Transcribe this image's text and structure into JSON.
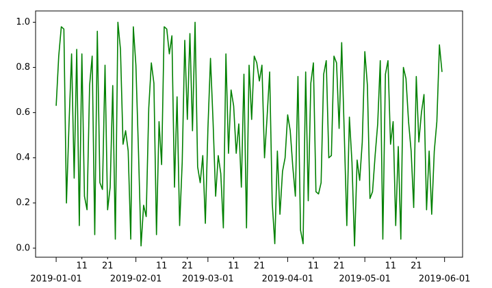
{
  "chart_data": {
    "type": "line",
    "x": [
      "2019-01-01",
      "2019-01-02",
      "2019-01-03",
      "2019-01-04",
      "2019-01-05",
      "2019-01-06",
      "2019-01-07",
      "2019-01-08",
      "2019-01-09",
      "2019-01-10",
      "2019-01-11",
      "2019-01-12",
      "2019-01-13",
      "2019-01-14",
      "2019-01-15",
      "2019-01-16",
      "2019-01-17",
      "2019-01-18",
      "2019-01-19",
      "2019-01-20",
      "2019-01-21",
      "2019-01-22",
      "2019-01-23",
      "2019-01-24",
      "2019-01-25",
      "2019-01-26",
      "2019-01-27",
      "2019-01-28",
      "2019-01-29",
      "2019-01-30",
      "2019-01-31",
      "2019-02-01",
      "2019-02-02",
      "2019-02-03",
      "2019-02-04",
      "2019-02-05",
      "2019-02-06",
      "2019-02-07",
      "2019-02-08",
      "2019-02-09",
      "2019-02-10",
      "2019-02-11",
      "2019-02-12",
      "2019-02-13",
      "2019-02-14",
      "2019-02-15",
      "2019-02-16",
      "2019-02-17",
      "2019-02-18",
      "2019-02-19",
      "2019-02-20",
      "2019-02-21",
      "2019-02-22",
      "2019-02-23",
      "2019-02-24",
      "2019-02-25",
      "2019-02-26",
      "2019-02-27",
      "2019-02-28",
      "2019-03-01",
      "2019-03-02",
      "2019-03-03",
      "2019-03-04",
      "2019-03-05",
      "2019-03-06",
      "2019-03-07",
      "2019-03-08",
      "2019-03-09",
      "2019-03-10",
      "2019-03-11",
      "2019-03-12",
      "2019-03-13",
      "2019-03-14",
      "2019-03-15",
      "2019-03-16",
      "2019-03-17",
      "2019-03-18",
      "2019-03-19",
      "2019-03-20",
      "2019-03-21",
      "2019-03-22",
      "2019-03-23",
      "2019-03-24",
      "2019-03-25",
      "2019-03-26",
      "2019-03-27",
      "2019-03-28",
      "2019-03-29",
      "2019-03-30",
      "2019-03-31",
      "2019-04-01",
      "2019-04-02",
      "2019-04-03",
      "2019-04-04",
      "2019-04-05",
      "2019-04-06",
      "2019-04-07",
      "2019-04-08",
      "2019-04-09",
      "2019-04-10",
      "2019-04-11",
      "2019-04-12",
      "2019-04-13",
      "2019-04-14",
      "2019-04-15",
      "2019-04-16",
      "2019-04-17",
      "2019-04-18",
      "2019-04-19",
      "2019-04-20",
      "2019-04-21",
      "2019-04-22",
      "2019-04-23",
      "2019-04-24",
      "2019-04-25",
      "2019-04-26",
      "2019-04-27",
      "2019-04-28",
      "2019-04-29",
      "2019-04-30",
      "2019-05-01",
      "2019-05-02",
      "2019-05-03",
      "2019-05-04",
      "2019-05-05",
      "2019-05-06",
      "2019-05-07",
      "2019-05-08",
      "2019-05-09",
      "2019-05-10",
      "2019-05-11",
      "2019-05-12",
      "2019-05-13",
      "2019-05-14",
      "2019-05-15",
      "2019-05-16",
      "2019-05-17",
      "2019-05-18",
      "2019-05-19",
      "2019-05-20",
      "2019-05-21",
      "2019-05-22",
      "2019-05-23",
      "2019-05-24",
      "2019-05-25",
      "2019-05-26",
      "2019-05-27",
      "2019-05-28",
      "2019-05-29",
      "2019-05-30",
      "2019-05-31"
    ],
    "series": [
      {
        "color": "#008000",
        "values": [
          0.63,
          0.85,
          0.98,
          0.97,
          0.2,
          0.55,
          0.86,
          0.31,
          0.88,
          0.1,
          0.86,
          0.23,
          0.17,
          0.72,
          0.85,
          0.06,
          0.96,
          0.29,
          0.26,
          0.81,
          0.17,
          0.27,
          0.72,
          0.04,
          1.0,
          0.88,
          0.46,
          0.52,
          0.43,
          0.04,
          0.98,
          0.81,
          0.43,
          0.01,
          0.19,
          0.14,
          0.62,
          0.82,
          0.73,
          0.06,
          0.56,
          0.37,
          0.98,
          0.97,
          0.86,
          0.94,
          0.27,
          0.67,
          0.1,
          0.38,
          0.92,
          0.57,
          0.95,
          0.52,
          1.0,
          0.36,
          0.29,
          0.41,
          0.11,
          0.53,
          0.84,
          0.56,
          0.23,
          0.41,
          0.33,
          0.09,
          0.86,
          0.42,
          0.7,
          0.63,
          0.42,
          0.55,
          0.27,
          0.77,
          0.09,
          0.81,
          0.57,
          0.85,
          0.82,
          0.74,
          0.81,
          0.4,
          0.58,
          0.78,
          0.2,
          0.02,
          0.43,
          0.15,
          0.34,
          0.4,
          0.59,
          0.52,
          0.36,
          0.23,
          0.76,
          0.08,
          0.02,
          0.78,
          0.21,
          0.73,
          0.82,
          0.25,
          0.24,
          0.29,
          0.77,
          0.83,
          0.4,
          0.41,
          0.85,
          0.82,
          0.53,
          0.91,
          0.51,
          0.1,
          0.58,
          0.38,
          0.01,
          0.39,
          0.3,
          0.47,
          0.87,
          0.72,
          0.22,
          0.25,
          0.41,
          0.55,
          0.83,
          0.04,
          0.77,
          0.83,
          0.46,
          0.56,
          0.1,
          0.45,
          0.04,
          0.8,
          0.75,
          0.56,
          0.43,
          0.18,
          0.76,
          0.47,
          0.6,
          0.68,
          0.17,
          0.43,
          0.15,
          0.43,
          0.56,
          0.9,
          0.78
        ]
      }
    ],
    "xlim": [
      "2018-12-24",
      "2019-06-08"
    ],
    "xticks": [
      "2019-01-01",
      "2019-02-01",
      "2019-03-01",
      "2019-04-01",
      "2019-05-01",
      "2019-06-01"
    ],
    "xminorticks": [
      {
        "value": "2019-01-11",
        "label": "11"
      },
      {
        "value": "2019-01-21",
        "label": "21"
      },
      {
        "value": "2019-02-11",
        "label": "11"
      },
      {
        "value": "2019-02-21",
        "label": "21"
      },
      {
        "value": "2019-03-11",
        "label": "11"
      },
      {
        "value": "2019-03-21",
        "label": "21"
      },
      {
        "value": "2019-04-11",
        "label": "11"
      },
      {
        "value": "2019-04-21",
        "label": "21"
      },
      {
        "value": "2019-05-11",
        "label": "11"
      },
      {
        "value": "2019-05-21",
        "label": "21"
      }
    ],
    "ylim": [
      -0.04,
      1.05
    ],
    "yticks": [
      {
        "value": 0,
        "label": "0.0"
      },
      0.2,
      0.4,
      0.6,
      0.8,
      {
        "value": 1,
        "label": "1.0"
      }
    ]
  }
}
